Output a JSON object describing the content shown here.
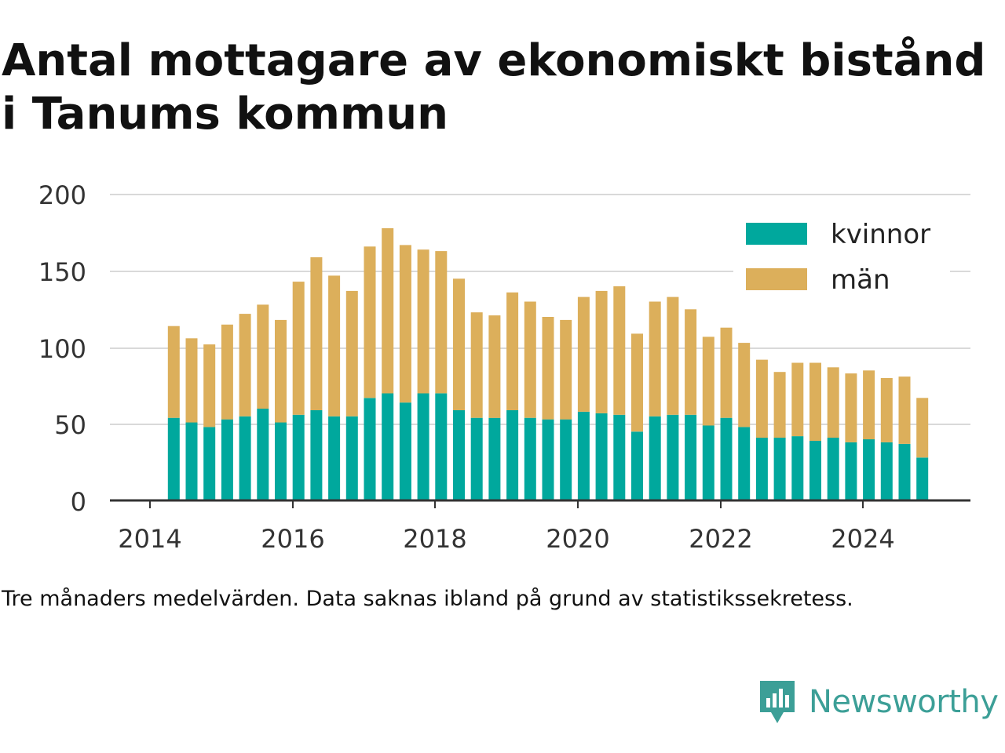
{
  "title": {
    "line1": "Antal mottagare av ekonomiskt bistånd",
    "line2": "i Tanums kommun"
  },
  "note": "Tre månaders medelvärden. Data saknas ibland på grund av statistikssekretess.",
  "brand": {
    "name": "Newsworthy",
    "icon": "newsworthy-logo-icon"
  },
  "colors": {
    "kvinnor": "#00a89d",
    "man": "#dcaf5b",
    "grid": "#d9d9d9",
    "axis": "#333333"
  },
  "chart_data": {
    "type": "bar",
    "stacked": true,
    "x_ticks": [
      "2014",
      "2016",
      "2018",
      "2020",
      "2022",
      "2024"
    ],
    "y_ticks": [
      "0",
      "50",
      "100",
      "150",
      "200"
    ],
    "ylim": [
      0,
      200
    ],
    "legend_position": "top-right",
    "x": [
      "2014-05",
      "2014-08",
      "2014-11",
      "2015-02",
      "2015-05",
      "2015-08",
      "2015-11",
      "2016-02",
      "2016-05",
      "2016-08",
      "2016-11",
      "2017-02",
      "2017-05",
      "2017-08",
      "2017-11",
      "2018-02",
      "2018-05",
      "2018-08",
      "2018-11",
      "2019-02",
      "2019-05",
      "2019-08",
      "2019-11",
      "2020-02",
      "2020-05",
      "2020-08",
      "2020-11",
      "2021-02",
      "2021-05",
      "2021-08",
      "2021-11",
      "2022-02",
      "2022-05",
      "2022-08",
      "2022-11",
      "2023-02",
      "2023-05",
      "2023-08",
      "2023-11",
      "2024-02",
      "2024-05",
      "2024-08",
      "2024-11"
    ],
    "series": [
      {
        "name": "kvinnor",
        "values": [
          54,
          51,
          48,
          53,
          55,
          60,
          51,
          56,
          59,
          55,
          55,
          67,
          70,
          64,
          70,
          70,
          59,
          54,
          54,
          59,
          54,
          53,
          53,
          58,
          57,
          56,
          45,
          55,
          56,
          56,
          49,
          54,
          48,
          41,
          41,
          42,
          39,
          41,
          38,
          40,
          38,
          37,
          28
        ]
      },
      {
        "name": "män",
        "values": [
          60,
          55,
          54,
          62,
          67,
          68,
          67,
          87,
          100,
          92,
          82,
          99,
          108,
          103,
          94,
          93,
          86,
          69,
          67,
          77,
          76,
          67,
          65,
          75,
          80,
          84,
          64,
          75,
          77,
          69,
          58,
          59,
          55,
          51,
          43,
          48,
          51,
          46,
          45,
          45,
          42,
          44,
          39
        ]
      }
    ]
  }
}
